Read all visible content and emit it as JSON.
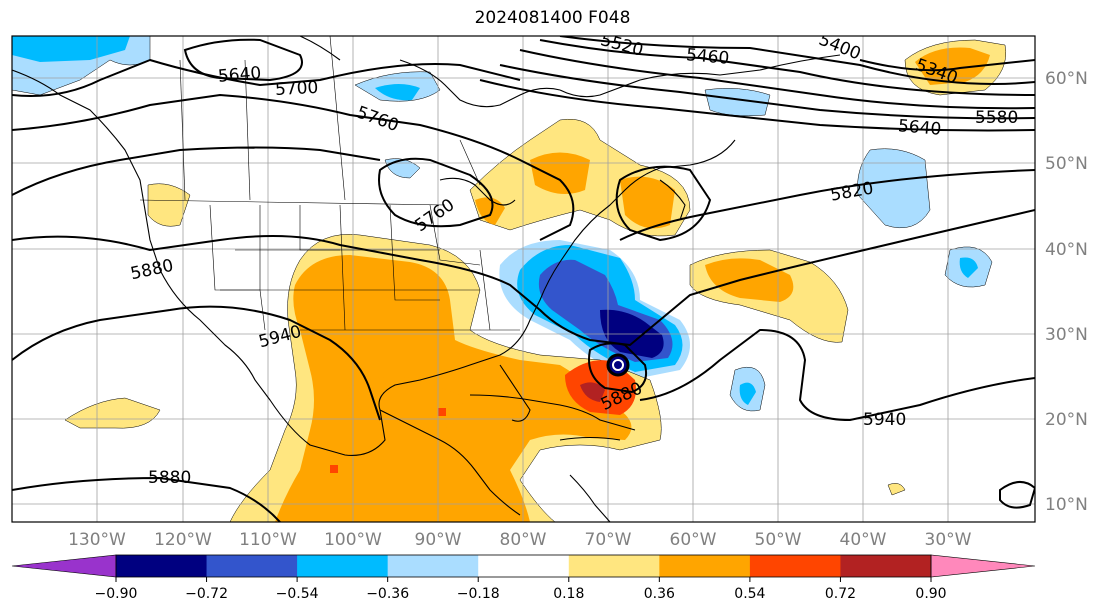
{
  "title": "2024081400 F048",
  "lat_labels": [
    "60°N",
    "50°N",
    "40°N",
    "30°N",
    "20°N",
    "10°N"
  ],
  "lon_labels": [
    "130°W",
    "120°W",
    "110°W",
    "100°W",
    "90°W",
    "80°W",
    "70°W",
    "60°W",
    "50°W",
    "40°W",
    "30°W"
  ],
  "contour_labels": [
    "5340",
    "5400",
    "5460",
    "5520",
    "5580",
    "5640",
    "5640",
    "5700",
    "5760",
    "5760",
    "5820",
    "5880",
    "5880",
    "5880",
    "5940",
    "5940"
  ],
  "colorbar": {
    "ticks": [
      "−0.90",
      "−0.72",
      "−0.54",
      "−0.36",
      "−0.18",
      "0.18",
      "0.36",
      "0.54",
      "0.72",
      "0.90"
    ],
    "colors": [
      "#9933cc",
      "#000080",
      "#3355cc",
      "#00bbff",
      "#aaddff",
      "#ffffff",
      "#ffe680",
      "#ffa500",
      "#ff4500",
      "#b22222",
      "#ff88bb"
    ]
  },
  "colors": {
    "lightblue": "#aaddff",
    "cyan": "#00bbff",
    "blue": "#3355cc",
    "navy": "#000080",
    "yellow": "#ffe680",
    "orange": "#ffa500",
    "red": "#ff4500",
    "darkred": "#b22222"
  }
}
